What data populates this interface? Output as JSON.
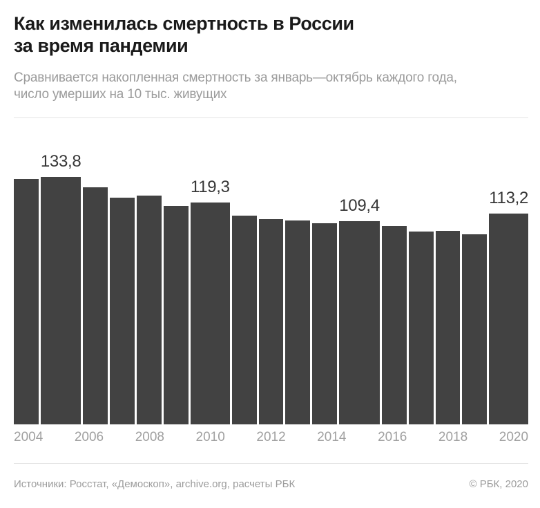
{
  "header": {
    "title": "Как изменилась смертность в России\nза время пандемии",
    "subtitle": "Сравнивается накопленная смертность за январь—октябрь каждого года,\nчисло умерших на 10 тыс. живущих"
  },
  "chart_data": {
    "type": "bar",
    "categories": [
      "2004",
      "2005",
      "2006",
      "2007",
      "2008",
      "2009",
      "2010",
      "2011",
      "2012",
      "2013",
      "2014",
      "2015",
      "2016",
      "2017",
      "2018",
      "2019",
      "2020"
    ],
    "values": [
      132.0,
      133.8,
      127.5,
      121.9,
      123.0,
      117.6,
      119.3,
      112.2,
      110.5,
      109.6,
      108.3,
      109.4,
      106.6,
      103.7,
      104.2,
      102.4,
      113.2
    ],
    "labeled_points": {
      "2005": "133,8",
      "2010": "119,3",
      "2015": "109,4",
      "2020": "113,2"
    },
    "x_tick_labels": [
      "2004",
      "2006",
      "2008",
      "2010",
      "2012",
      "2014",
      "2016",
      "2018",
      "2020"
    ],
    "title": "Как изменилась смертность в России за время пандемии",
    "xlabel": "",
    "ylabel": "число умерших на 10 тыс. живущих",
    "ylim": [
      0,
      146
    ],
    "grid": false,
    "legend": "none",
    "bar_color": "#424242",
    "value_label_color": "#373737",
    "axis_label_color": "#a0a0a0"
  },
  "footer": {
    "sources": "Источники: Росстат, «Демоскоп», archive.org, расчеты РБК",
    "copyright": "© РБК, 2020"
  }
}
